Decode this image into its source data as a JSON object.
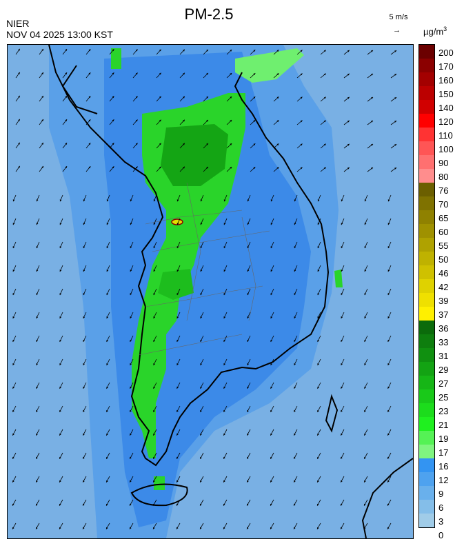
{
  "header": {
    "title": "PM-2.5",
    "organization": "NIER",
    "timestamp": "NOV 04 2025 13:00 KST",
    "wind_reference": "5 m/s",
    "unit_prefix": "µg/m",
    "unit_power": "3"
  },
  "colorbar": {
    "labels": [
      "200",
      "170",
      "160",
      "150",
      "140",
      "120",
      "110",
      "100",
      "90",
      "80",
      "76",
      "70",
      "65",
      "60",
      "55",
      "50",
      "46",
      "42",
      "39",
      "37",
      "36",
      "33",
      "31",
      "29",
      "27",
      "25",
      "23",
      "21",
      "19",
      "17",
      "16",
      "12",
      "9",
      "6",
      "3",
      "0"
    ],
    "colors": [
      "#6b0000",
      "#8b0000",
      "#a30000",
      "#bb0000",
      "#d10000",
      "#ff0000",
      "#ff3333",
      "#ff5555",
      "#ff7070",
      "#ff8d8d",
      "#6b5f00",
      "#7f7200",
      "#8f8100",
      "#9f9100",
      "#afa200",
      "#bfb200",
      "#cfc100",
      "#dfd200",
      "#efe000",
      "#fff000",
      "#0b6b0b",
      "#0e7e0e",
      "#109010",
      "#13a313",
      "#16b616",
      "#19c919",
      "#1cdc1c",
      "#1ff01f",
      "#55f255",
      "#80f580",
      "#3394f2",
      "#4ea2ef",
      "#69b0ec",
      "#84bee9",
      "#a0cce8"
    ]
  },
  "map": {
    "bands": [
      {
        "name": "low",
        "color": "#79b0e4"
      },
      {
        "name": "mid",
        "color": "#5aa0e8"
      },
      {
        "name": "blue",
        "color": "#3c8ae8"
      },
      {
        "name": "green",
        "color": "#2ad42a"
      },
      {
        "name": "dark-green",
        "color": "#14a514"
      },
      {
        "name": "light-green",
        "color": "#6fef6f"
      },
      {
        "name": "hotspot",
        "color": "#e0e000"
      }
    ]
  }
}
